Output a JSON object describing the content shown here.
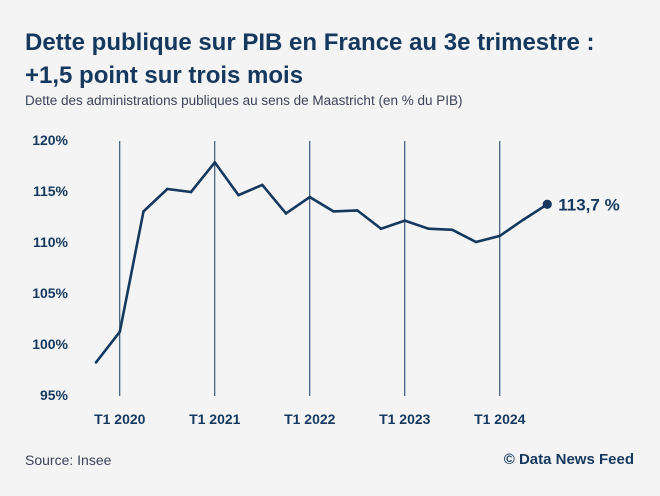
{
  "header": {
    "title": "Dette publique sur PIB en France au 3e trimestre : +1,5 point sur trois mois",
    "subtitle": "Dette des administrations publiques au sens de Maastricht (en % du PIB)"
  },
  "footer": {
    "source": "Source: Insee",
    "credit": "© Data News Feed"
  },
  "colors": {
    "line": "#14385e",
    "text": "#14385e",
    "background": "#f4f4f4"
  },
  "chart_data": {
    "type": "line",
    "title": "Dette publique sur PIB en France au 3e trimestre : +1,5 point sur trois mois",
    "subtitle": "Dette des administrations publiques au sens de Maastricht (en % du PIB)",
    "xlabel": "",
    "ylabel": "",
    "ylim": [
      95,
      120
    ],
    "yticks": [
      95,
      100,
      105,
      110,
      115,
      120
    ],
    "ytick_labels": [
      "95%",
      "100%",
      "105%",
      "110%",
      "115%",
      "120%"
    ],
    "x": [
      "T4 2019",
      "T1 2020",
      "T2 2020",
      "T3 2020",
      "T4 2020",
      "T1 2021",
      "T2 2021",
      "T3 2021",
      "T4 2021",
      "T1 2022",
      "T2 2022",
      "T3 2022",
      "T4 2022",
      "T1 2023",
      "T2 2023",
      "T3 2023",
      "T4 2023",
      "T1 2024",
      "T2 2024",
      "T3 2024"
    ],
    "xticks": [
      "T1 2020",
      "T1 2021",
      "T1 2022",
      "T1 2023",
      "T1 2024"
    ],
    "series": [
      {
        "values": [
          98.2,
          101.2,
          113.0,
          115.2,
          114.9,
          117.8,
          114.6,
          115.6,
          112.8,
          114.4,
          113.0,
          113.1,
          111.3,
          112.1,
          111.3,
          111.2,
          110.0,
          110.6,
          112.2,
          113.7
        ]
      }
    ],
    "annotations": [
      {
        "label": "113,7 %",
        "x": "T3 2024",
        "y": 113.7
      }
    ],
    "grid": "vertical lines at T1 of each year",
    "legend": "none"
  }
}
